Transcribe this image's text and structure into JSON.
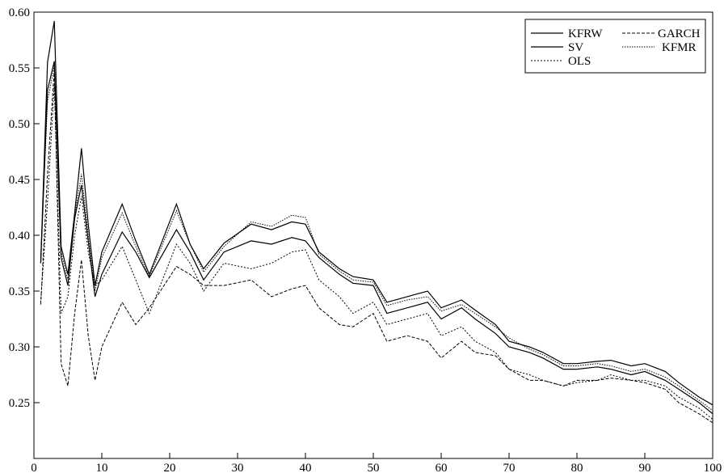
{
  "chart_data": {
    "type": "line",
    "xlim": [
      0,
      100
    ],
    "ylim": [
      0.2,
      0.6
    ],
    "xticks": [
      0,
      10,
      20,
      30,
      40,
      50,
      60,
      70,
      80,
      90,
      100
    ],
    "yticks": [
      0.25,
      0.3,
      0.35,
      0.4,
      0.45,
      0.5,
      0.55,
      0.6
    ],
    "xtick_labels": [
      "0",
      "10",
      "20",
      "30",
      "40",
      "50",
      "60",
      "70",
      "80",
      "90",
      "100"
    ],
    "ytick_labels": [
      "0.25",
      "0.30",
      "0.35",
      "0.40",
      "0.45",
      "0.50",
      "0.55",
      "0.60"
    ],
    "grid": false,
    "legend_position": "top-right",
    "series": [
      {
        "name": "KFRW",
        "style": "solid",
        "x": [
          1,
          2,
          3,
          4,
          5,
          6,
          7,
          8,
          9,
          10,
          13,
          15,
          17,
          21,
          23,
          25,
          28,
          32,
          35,
          38,
          40,
          42,
          45,
          47,
          50,
          52,
          55,
          58,
          60,
          63,
          65,
          68,
          70,
          73,
          75,
          78,
          80,
          83,
          85,
          88,
          90,
          93,
          95,
          98,
          100
        ],
        "y": [
          0.375,
          0.555,
          0.592,
          0.39,
          0.365,
          0.42,
          0.478,
          0.41,
          0.355,
          0.385,
          0.428,
          0.395,
          0.365,
          0.428,
          0.392,
          0.37,
          0.393,
          0.41,
          0.405,
          0.412,
          0.41,
          0.385,
          0.37,
          0.363,
          0.36,
          0.34,
          0.345,
          0.35,
          0.335,
          0.342,
          0.333,
          0.32,
          0.305,
          0.3,
          0.295,
          0.285,
          0.285,
          0.287,
          0.288,
          0.283,
          0.285,
          0.278,
          0.268,
          0.255,
          0.248
        ]
      },
      {
        "name": "SV",
        "style": "solid",
        "x": [
          1,
          2,
          3,
          4,
          5,
          6,
          7,
          8,
          9,
          10,
          13,
          15,
          17,
          21,
          23,
          25,
          28,
          32,
          35,
          38,
          40,
          42,
          45,
          47,
          50,
          52,
          55,
          58,
          60,
          63,
          65,
          68,
          70,
          73,
          75,
          78,
          80,
          83,
          85,
          88,
          90,
          93,
          95,
          98,
          100
        ],
        "y": [
          0.375,
          0.53,
          0.556,
          0.38,
          0.355,
          0.415,
          0.445,
          0.395,
          0.345,
          0.365,
          0.403,
          0.385,
          0.362,
          0.405,
          0.385,
          0.36,
          0.385,
          0.395,
          0.392,
          0.398,
          0.395,
          0.38,
          0.365,
          0.357,
          0.355,
          0.33,
          0.335,
          0.34,
          0.325,
          0.335,
          0.325,
          0.312,
          0.3,
          0.295,
          0.29,
          0.28,
          0.28,
          0.282,
          0.28,
          0.275,
          0.278,
          0.27,
          0.262,
          0.25,
          0.24
        ]
      },
      {
        "name": "OLS",
        "style": "dotted",
        "x": [
          1,
          2,
          3,
          4,
          5,
          6,
          7,
          8,
          9,
          10,
          13,
          15,
          17,
          21,
          23,
          25,
          28,
          32,
          35,
          38,
          40,
          42,
          45,
          47,
          50,
          52,
          55,
          58,
          60,
          63,
          65,
          68,
          70,
          73,
          75,
          78,
          80,
          83,
          85,
          88,
          90,
          93,
          95,
          98,
          100
        ],
        "y": [
          0.34,
          0.43,
          0.535,
          0.33,
          0.345,
          0.4,
          0.435,
          0.385,
          0.355,
          0.36,
          0.39,
          0.36,
          0.33,
          0.392,
          0.375,
          0.35,
          0.375,
          0.37,
          0.375,
          0.385,
          0.387,
          0.36,
          0.345,
          0.33,
          0.34,
          0.32,
          0.325,
          0.33,
          0.31,
          0.318,
          0.305,
          0.295,
          0.28,
          0.275,
          0.27,
          0.265,
          0.268,
          0.27,
          0.275,
          0.27,
          0.27,
          0.265,
          0.255,
          0.245,
          0.235
        ]
      },
      {
        "name": "GARCH",
        "style": "dashed",
        "x": [
          1,
          2,
          3,
          4,
          5,
          6,
          7,
          8,
          9,
          10,
          13,
          15,
          17,
          21,
          23,
          25,
          28,
          32,
          35,
          38,
          40,
          42,
          45,
          47,
          50,
          52,
          55,
          58,
          60,
          63,
          65,
          68,
          70,
          73,
          75,
          78,
          80,
          83,
          85,
          88,
          90,
          93,
          95,
          98,
          100
        ],
        "y": [
          0.338,
          0.455,
          0.548,
          0.285,
          0.265,
          0.33,
          0.378,
          0.31,
          0.27,
          0.3,
          0.34,
          0.32,
          0.335,
          0.372,
          0.365,
          0.355,
          0.355,
          0.36,
          0.345,
          0.352,
          0.355,
          0.335,
          0.32,
          0.318,
          0.33,
          0.305,
          0.31,
          0.305,
          0.29,
          0.305,
          0.295,
          0.292,
          0.28,
          0.27,
          0.27,
          0.265,
          0.27,
          0.27,
          0.272,
          0.27,
          0.268,
          0.262,
          0.25,
          0.24,
          0.232
        ]
      },
      {
        "name": "KFMR",
        "style": "dotted-dense",
        "x": [
          1,
          2,
          3,
          4,
          5,
          6,
          7,
          8,
          9,
          10,
          13,
          15,
          17,
          21,
          23,
          25,
          28,
          32,
          35,
          38,
          40,
          42,
          45,
          47,
          50,
          52,
          55,
          58,
          60,
          63,
          65,
          68,
          70,
          73,
          75,
          78,
          80,
          83,
          85,
          88,
          90,
          93,
          95,
          98,
          100
        ],
        "y": [
          0.38,
          0.52,
          0.552,
          0.385,
          0.36,
          0.418,
          0.455,
          0.4,
          0.35,
          0.38,
          0.42,
          0.39,
          0.363,
          0.422,
          0.392,
          0.367,
          0.39,
          0.412,
          0.408,
          0.418,
          0.416,
          0.383,
          0.368,
          0.36,
          0.358,
          0.337,
          0.342,
          0.345,
          0.332,
          0.338,
          0.33,
          0.318,
          0.308,
          0.298,
          0.293,
          0.283,
          0.283,
          0.285,
          0.283,
          0.278,
          0.28,
          0.273,
          0.265,
          0.252,
          0.243
        ]
      }
    ]
  },
  "legend": {
    "kfrw": "KFRW",
    "garch": "GARCH",
    "sv": "SV",
    "kfmr": "KFMR",
    "ols": "OLS"
  }
}
